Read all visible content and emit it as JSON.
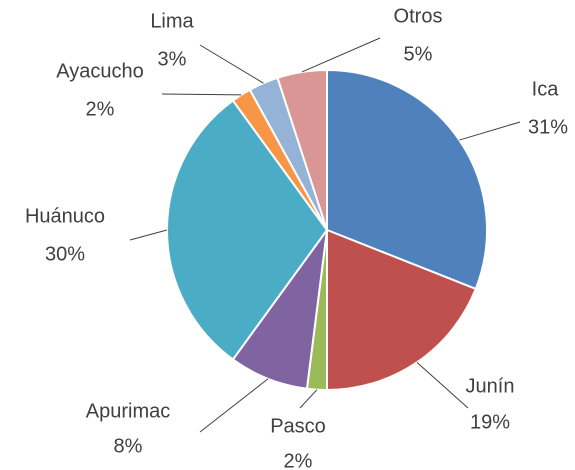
{
  "chart_data": {
    "type": "pie",
    "categories": [
      "Ica",
      "Junín",
      "Pasco",
      "Apurimac",
      "Huánuco",
      "Ayacucho",
      "Lima",
      "Otros"
    ],
    "values": [
      31,
      19,
      2,
      8,
      30,
      2,
      3,
      5
    ],
    "value_labels": [
      "31%",
      "19%",
      "2%",
      "8%",
      "30%",
      "2%",
      "3%",
      "5%"
    ],
    "colors": [
      "#4f81bd",
      "#c0504d",
      "#9bbb59",
      "#8064a2",
      "#4bacc6",
      "#f79646",
      "#95b3d7",
      "#d99694"
    ]
  }
}
